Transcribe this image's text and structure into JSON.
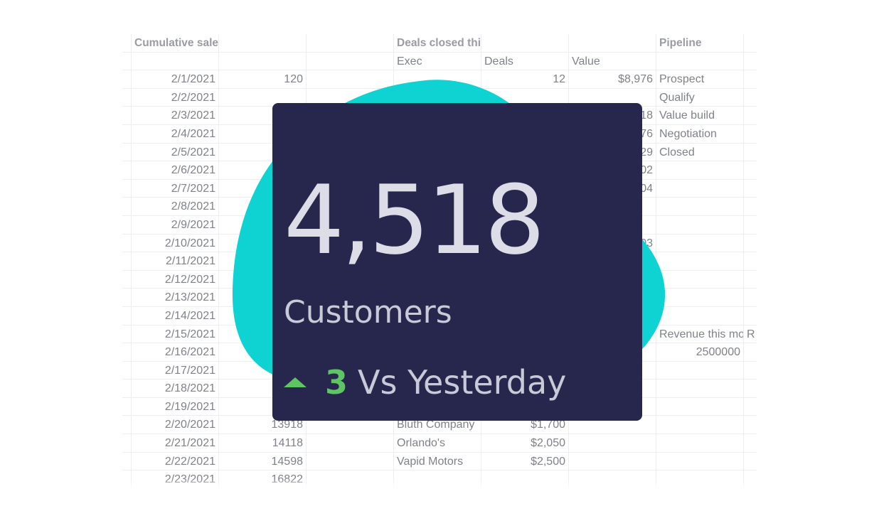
{
  "spreadsheet": {
    "rows": [
      [
        "",
        "Cumulative sales this month",
        "",
        "",
        "Deals closed this month",
        "",
        "",
        "Pipeline",
        "",
        ""
      ],
      [
        "",
        "",
        "",
        "",
        "Exec",
        "Deals",
        "Value",
        "",
        "",
        ""
      ],
      [
        "",
        "2/1/2021",
        "120",
        "",
        "",
        "12",
        "$8,976",
        "Prospect",
        "",
        ""
      ],
      [
        "",
        "2/2/2021",
        "",
        "",
        "",
        "",
        "",
        "Qualify",
        "",
        ""
      ],
      [
        "",
        "2/3/2021",
        "",
        "",
        "",
        "",
        "18",
        "Value build",
        "",
        ""
      ],
      [
        "",
        "2/4/2021",
        "",
        "",
        "",
        "",
        "76",
        "Negotiation",
        "",
        ""
      ],
      [
        "",
        "2/5/2021",
        "",
        "",
        "",
        "",
        "29",
        "Closed",
        "",
        ""
      ],
      [
        "",
        "2/6/2021",
        "",
        "",
        "",
        "",
        "02",
        "",
        "",
        ""
      ],
      [
        "",
        "2/7/2021",
        "",
        "",
        "",
        "",
        "04",
        "",
        "",
        ""
      ],
      [
        "",
        "2/8/2021",
        "",
        "",
        "",
        "",
        "",
        "",
        "",
        ""
      ],
      [
        "",
        "2/9/2021",
        "",
        "",
        "",
        "",
        "",
        "",
        "",
        ""
      ],
      [
        "",
        "2/10/2021",
        "",
        "",
        "",
        "",
        "03",
        "",
        "",
        ""
      ],
      [
        "",
        "2/11/2021",
        "",
        "",
        "",
        "",
        "",
        "",
        "",
        ""
      ],
      [
        "",
        "2/12/2021",
        "",
        "",
        "",
        "",
        "",
        "",
        "",
        ""
      ],
      [
        "",
        "2/13/2021",
        "",
        "",
        "",
        "",
        "",
        "",
        "",
        ""
      ],
      [
        "",
        "2/14/2021",
        "",
        "",
        "",
        "",
        "",
        "",
        "",
        ""
      ],
      [
        "",
        "2/15/2021",
        "",
        "",
        "",
        "",
        "",
        "Revenue this mo",
        "R",
        ""
      ],
      [
        "",
        "2/16/2021",
        "",
        "",
        "",
        "",
        "",
        "2500000",
        "",
        ""
      ],
      [
        "",
        "2/17/2021",
        "",
        "",
        "",
        "",
        "",
        "",
        "",
        ""
      ],
      [
        "",
        "2/18/2021",
        "",
        "",
        "",
        "",
        "",
        "",
        "",
        ""
      ],
      [
        "",
        "2/19/2021",
        "",
        "",
        "",
        "",
        "",
        "",
        "",
        ""
      ],
      [
        "",
        "2/20/2021",
        "13918",
        "",
        "Bluth Company",
        "$1,700",
        "",
        "",
        "",
        ""
      ],
      [
        "",
        "2/21/2021",
        "14118",
        "",
        "Orlando's",
        "$2,050",
        "",
        "",
        "",
        ""
      ],
      [
        "",
        "2/22/2021",
        "14598",
        "",
        "Vapid Motors",
        "$2,500",
        "",
        "",
        "",
        ""
      ],
      [
        "",
        "2/23/2021",
        "16822",
        "",
        "",
        "",
        "",
        "",
        "",
        ""
      ]
    ]
  },
  "kpi_card": {
    "value": "4,518",
    "label": "Customers",
    "delta": "3",
    "comparison": "Vs Yesterday",
    "icon": "triangle-up-icon"
  },
  "colors": {
    "card_background": "#27274d",
    "blob": "#0fd3d3",
    "positive": "#5fc464",
    "value_text": "#dcdde6"
  }
}
